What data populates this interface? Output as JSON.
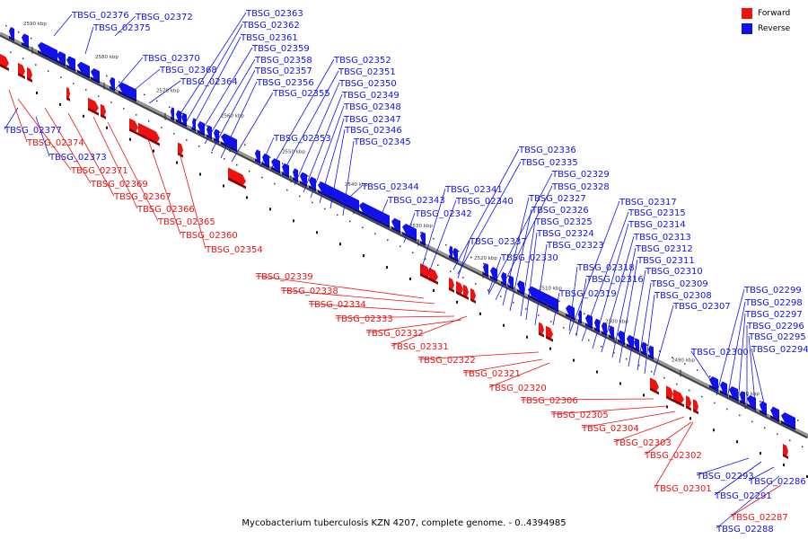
{
  "colors": {
    "forward": "#ee1111",
    "reverse": "#1111ee",
    "backbone": "#9a9a9a"
  },
  "legend": [
    {
      "label": "Forward",
      "color": "#ee1111"
    },
    {
      "label": "Reverse",
      "color": "#1111ee"
    }
  ],
  "caption": "Mycobacterium tuberculosis KZN 4207, complete genome. - 0..4394985",
  "ticks": [
    "2590 kbp",
    "2580 kbp",
    "2570 kbp",
    "2560 kbp",
    "2550 kbp",
    "2540 kbp",
    "2530 kbp",
    "2520 kbp",
    "2510 kbp",
    "2500 kbp",
    "2490 kbp",
    "2480 kbp"
  ],
  "genes_reverse": [
    "TBSG_02376",
    "TBSG_02372",
    "TBSG_02375",
    "TBSG_02363",
    "TBSG_02362",
    "TBSG_02361",
    "TBSG_02359",
    "TBSG_02358",
    "TBSG_02357",
    "TBSG_02356",
    "TBSG_02355",
    "TBSG_02370",
    "TBSG_02368",
    "TBSG_02364",
    "TBSG_02352",
    "TBSG_02351",
    "TBSG_02350",
    "TBSG_02349",
    "TBSG_02348",
    "TBSG_02347",
    "TBSG_02346",
    "TBSG_02345",
    "TBSG_02353",
    "TBSG_02377",
    "TBSG_02373",
    "TBSG_02344",
    "TBSG_02343",
    "TBSG_02342",
    "TBSG_02341",
    "TBSG_02340",
    "TBSG_02336",
    "TBSG_02335",
    "TBSG_02329",
    "TBSG_02328",
    "TBSG_02327",
    "TBSG_02326",
    "TBSG_02325",
    "TBSG_02324",
    "TBSG_02323",
    "TBSG_02337",
    "TBSG_02330",
    "TBSG_02317",
    "TBSG_02315",
    "TBSG_02314",
    "TBSG_02313",
    "TBSG_02312",
    "TBSG_02311",
    "TBSG_02310",
    "TBSG_02318",
    "TBSG_02316",
    "TBSG_02309",
    "TBSG_02319",
    "TBSG_02308",
    "TBSG_02307",
    "TBSG_02299",
    "TBSG_02298",
    "TBSG_02297",
    "TBSG_02296",
    "TBSG_02295",
    "TBSG_02294",
    "TBSG_02300",
    "TBSG_02293",
    "TBSG_02291",
    "TBSG_02286",
    "TBSG_02288"
  ],
  "genes_forward": [
    "TBSG_02374",
    "TBSG_02371",
    "TBSG_02369",
    "TBSG_02367",
    "TBSG_02366",
    "TBSG_02365",
    "TBSG_02360",
    "TBSG_02354",
    "TBSG_02339",
    "TBSG_02338",
    "TBSG_02334",
    "TBSG_02333",
    "TBSG_02332",
    "TBSG_02331",
    "TBSG_02322",
    "TBSG_02321",
    "TBSG_02320",
    "TBSG_02306",
    "TBSG_02305",
    "TBSG_02304",
    "TBSG_02303",
    "TBSG_02302",
    "TBSG_02301",
    "TBSG_02287"
  ]
}
